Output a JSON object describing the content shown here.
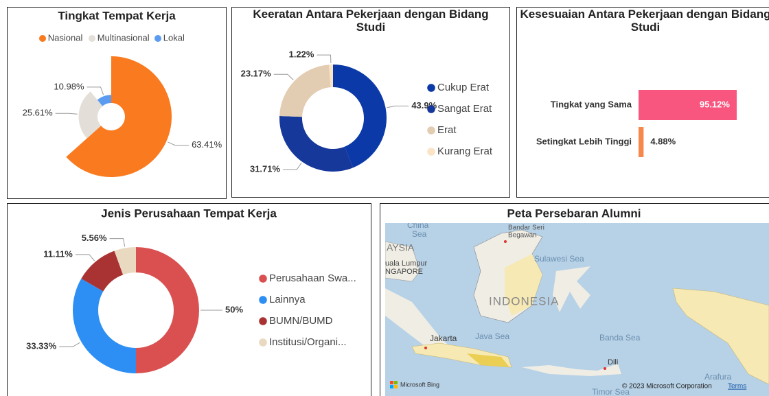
{
  "chart_data": [
    {
      "type": "rose",
      "title": "Tingkat Tempat Kerja",
      "categories": [
        "Nasional",
        "Multinasional",
        "Lokal"
      ],
      "values": [
        63.41,
        25.61,
        10.98
      ],
      "value_labels": [
        "63.41%",
        "25.61%",
        "10.98%"
      ],
      "colors": [
        "#f97a1f",
        "#e3dfd8",
        "#5b9cf0"
      ],
      "legend": "top"
    },
    {
      "type": "donut",
      "title": "Keeratan Antara Pekerjaan dengan Bidang Studi",
      "categories": [
        "Cukup Erat",
        "Sangat Erat",
        "Erat",
        "Kurang Erat"
      ],
      "values": [
        43.9,
        31.71,
        23.17,
        1.22
      ],
      "value_labels": [
        "43.9%",
        "31.71%",
        "23.17%",
        "1.22%"
      ],
      "colors": [
        "#0b3aa8",
        "#16389b",
        "#e2cdb2",
        "#fbe4c6"
      ],
      "legend": "right"
    },
    {
      "type": "hbar",
      "title": "Kesesuaian Antara Pekerjaan dengan Bidang Studi",
      "categories": [
        "Tingkat yang Sama",
        "Setingkat Lebih Tinggi"
      ],
      "values": [
        95.12,
        4.88
      ],
      "value_labels": [
        "95.12%",
        "4.88%"
      ],
      "colors": [
        "#f8567f",
        "#f5884a"
      ]
    },
    {
      "type": "donut",
      "title": "Jenis Perusahaan Tempat Kerja",
      "categories": [
        "Perusahaan Swa...",
        "Lainnya",
        "BUMN/BUMD",
        "Institusi/Organi..."
      ],
      "values": [
        50,
        33.33,
        11.11,
        5.56
      ],
      "value_labels": [
        "50%",
        "33.33%",
        "11.11%",
        "5.56%"
      ],
      "colors": [
        "#da5050",
        "#2d8ff4",
        "#a93333",
        "#e9d9c1"
      ],
      "legend": "right"
    }
  ],
  "map": {
    "title": "Peta Persebaran Alumni",
    "labels": [
      "China",
      "Sea",
      "Bandar Seri",
      "Begawan",
      "AYSIA",
      "uala Lumpur",
      "NGAPORE",
      "Sulawesi Sea",
      "INDONESIA",
      "Jakarta",
      "Java Sea",
      "Banda Sea",
      "Dili",
      "Arafura",
      "Timor Sea"
    ],
    "logo": "Microsoft Bing",
    "copyright": "© 2023 Microsoft Corporation",
    "terms": "Terms"
  }
}
